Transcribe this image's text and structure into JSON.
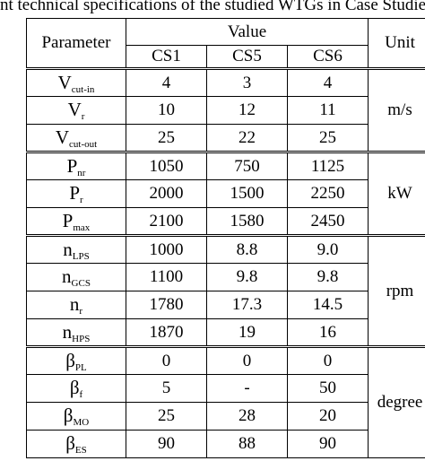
{
  "caption": "nt technical specifications of the studied WTGs in Case Studies",
  "table": {
    "header": {
      "parameter": "Parameter",
      "value": "Value",
      "unit": "Unit",
      "cases": [
        "CS1",
        "CS5",
        "CS6"
      ]
    },
    "groups": [
      {
        "unit": "m/s",
        "rows": [
          {
            "sym": "V",
            "sub": "cut-in",
            "vals": [
              "4",
              "3",
              "4"
            ]
          },
          {
            "sym": "V",
            "sub": "r",
            "vals": [
              "10",
              "12",
              "11"
            ]
          },
          {
            "sym": "V",
            "sub": "cut-out",
            "vals": [
              "25",
              "22",
              "25"
            ]
          }
        ]
      },
      {
        "unit": "kW",
        "rows": [
          {
            "sym": "P",
            "sub": "nr",
            "vals": [
              "1050",
              "750",
              "1125"
            ]
          },
          {
            "sym": "P",
            "sub": "r",
            "vals": [
              "2000",
              "1500",
              "2250"
            ]
          },
          {
            "sym": "P",
            "sub": "max",
            "vals": [
              "2100",
              "1580",
              "2450"
            ]
          }
        ]
      },
      {
        "unit": "rpm",
        "rows": [
          {
            "sym": "n",
            "sub": "LPS",
            "vals": [
              "1000",
              "8.8",
              "9.0"
            ]
          },
          {
            "sym": "n",
            "sub": "GCS",
            "vals": [
              "1100",
              "9.8",
              "9.8"
            ]
          },
          {
            "sym": "n",
            "sub": "r",
            "vals": [
              "1780",
              "17.3",
              "14.5"
            ]
          },
          {
            "sym": "n",
            "sub": "HPS",
            "vals": [
              "1870",
              "19",
              "16"
            ]
          }
        ]
      },
      {
        "unit": "degree",
        "rows": [
          {
            "sym": "β",
            "sub": "PL",
            "vals": [
              "0",
              "0",
              "0"
            ]
          },
          {
            "sym": "β",
            "sub": "f",
            "vals": [
              "5",
              "-",
              "50"
            ]
          },
          {
            "sym": "β",
            "sub": "MO",
            "vals": [
              "25",
              "28",
              "20"
            ]
          },
          {
            "sym": "β",
            "sub": "ES",
            "vals": [
              "90",
              "88",
              "90"
            ]
          }
        ]
      }
    ]
  }
}
